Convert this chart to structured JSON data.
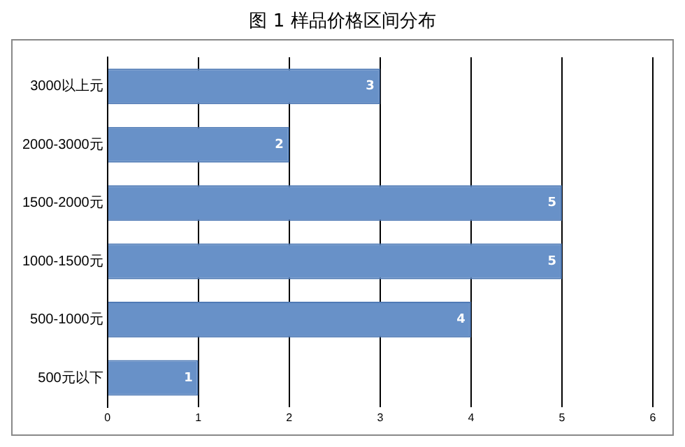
{
  "chart_data": {
    "type": "bar",
    "orientation": "horizontal",
    "title": "图 1 样品价格区间分布",
    "categories": [
      "3000以上元",
      "2000-3000元",
      "1500-2000元",
      "1000-1500元",
      "500-1000元",
      "500元以下"
    ],
    "values": [
      3,
      2,
      5,
      5,
      4,
      1
    ],
    "color": "#6891c8",
    "xlim": [
      0,
      6
    ],
    "xticks": [
      0,
      1,
      2,
      3,
      4,
      5,
      6
    ],
    "grid": "x",
    "legend": false,
    "data_labels": true
  }
}
